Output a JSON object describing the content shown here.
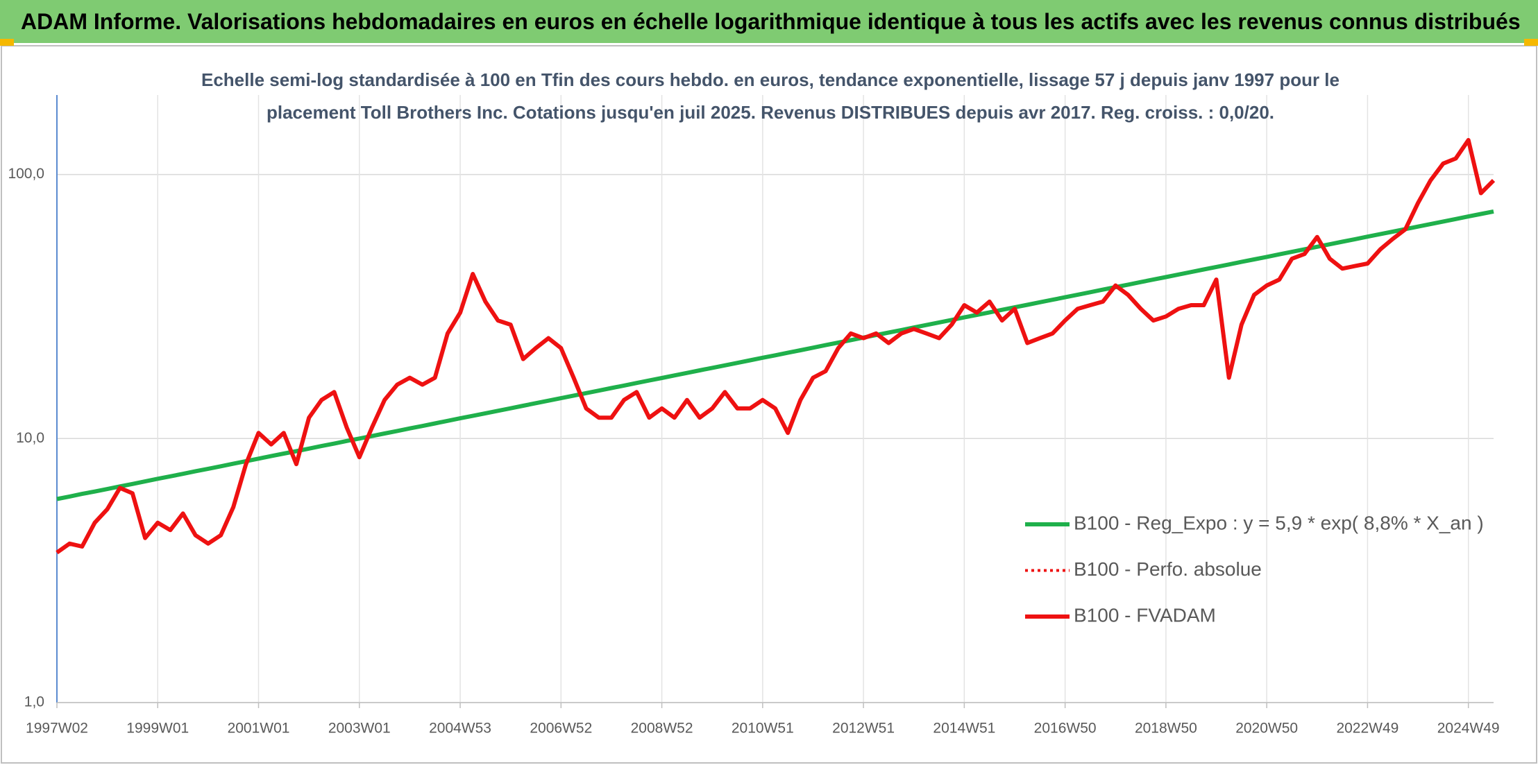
{
  "header": {
    "title": "ADAM Informe. Valorisations hebdomadaires en euros en échelle logarithmique identique à tous les actifs avec les revenus connus distribués"
  },
  "chart_data": {
    "type": "line",
    "title": "Echelle semi-log standardisée à 100 en Tfin des cours hebdo. en euros, tendance exponentielle, lissage 57 j depuis janv 1997 pour le placement Toll Brothers Inc. Cotations jusqu'en juil 2025. Revenus DISTRIBUES depuis avr 2017. Reg. croiss. : 0,0/20.",
    "log_y": true,
    "grid": true,
    "legend_position": "right",
    "ylim": [
      1,
      200
    ],
    "yticks": [
      {
        "value": 1,
        "label": "1,0"
      },
      {
        "value": 10,
        "label": "10,0"
      },
      {
        "value": 100,
        "label": "100,0"
      }
    ],
    "categories": [
      "1997W02",
      null,
      null,
      null,
      null,
      null,
      null,
      null,
      "1999W01",
      null,
      null,
      null,
      null,
      null,
      null,
      null,
      "2001W01",
      null,
      null,
      null,
      null,
      null,
      null,
      null,
      "2003W01",
      null,
      null,
      null,
      null,
      null,
      null,
      null,
      "2004W53",
      null,
      null,
      null,
      null,
      null,
      null,
      null,
      "2006W52",
      null,
      null,
      null,
      null,
      null,
      null,
      null,
      "2008W52",
      null,
      null,
      null,
      null,
      null,
      null,
      null,
      "2010W51",
      null,
      null,
      null,
      null,
      null,
      null,
      null,
      "2012W51",
      null,
      null,
      null,
      null,
      null,
      null,
      null,
      "2014W51",
      null,
      null,
      null,
      null,
      null,
      null,
      null,
      "2016W50",
      null,
      null,
      null,
      null,
      null,
      null,
      null,
      "2018W50",
      null,
      null,
      null,
      null,
      null,
      null,
      null,
      "2020W50",
      null,
      null,
      null,
      null,
      null,
      null,
      null,
      "2022W49",
      null,
      null,
      null,
      null,
      null,
      null,
      null,
      "2024W49",
      null,
      null
    ],
    "series": [
      {
        "name": "B100 - Reg_Expo : y = 5,9 * exp( 8,8% *  X_an )",
        "color": "#1fb04b",
        "style": "solid",
        "values": [
          5.9,
          6.03,
          6.17,
          6.3,
          6.44,
          6.59,
          6.73,
          6.88,
          7.04,
          7.19,
          7.35,
          7.52,
          7.68,
          7.85,
          8.03,
          8.21,
          8.39,
          8.58,
          8.77,
          8.96,
          9.16,
          9.37,
          9.57,
          9.79,
          10.0,
          10.22,
          10.45,
          10.68,
          10.92,
          11.16,
          11.41,
          11.67,
          11.93,
          12.19,
          12.46,
          12.74,
          13.02,
          13.31,
          13.61,
          13.91,
          14.22,
          14.54,
          14.86,
          15.19,
          15.53,
          15.87,
          16.23,
          16.59,
          16.96,
          17.34,
          17.72,
          18.12,
          18.52,
          18.93,
          19.35,
          19.78,
          20.23,
          20.67,
          21.13,
          21.6,
          22.09,
          22.58,
          23.08,
          23.59,
          24.12,
          24.65,
          25.2,
          25.76,
          26.34,
          26.92,
          27.52,
          28.13,
          28.76,
          29.4,
          30.05,
          30.72,
          31.41,
          32.1,
          32.82,
          33.55,
          34.29,
          35.06,
          35.84,
          36.63,
          37.45,
          38.28,
          39.13,
          40.0,
          40.89,
          41.8,
          42.73,
          43.68,
          44.65,
          45.65,
          46.66,
          47.7,
          48.76,
          49.85,
          50.95,
          52.09,
          53.25,
          54.43,
          55.64,
          56.88,
          58.15,
          59.44,
          60.76,
          62.11,
          63.5,
          64.91,
          66.35,
          67.83,
          69.34,
          70.88,
          72.46
        ]
      },
      {
        "name": "B100 - Perfo. absolue",
        "color": "#ee1111",
        "style": "dotted",
        "values": [
          3.7,
          4.0,
          3.9,
          4.8,
          5.4,
          6.5,
          6.2,
          4.2,
          4.8,
          4.5,
          5.2,
          4.3,
          4.0,
          4.3,
          5.5,
          8.0,
          10.5,
          9.5,
          10.5,
          8.0,
          12,
          14,
          15,
          11,
          8.5,
          11,
          14,
          16,
          17,
          16,
          17,
          25,
          30,
          42,
          33,
          28,
          27,
          20,
          22,
          24,
          22,
          17,
          13,
          12,
          12,
          14,
          15,
          12,
          13,
          12,
          14,
          12,
          13,
          15,
          13,
          13,
          14,
          13,
          10.5,
          14,
          17,
          18,
          22,
          25,
          24,
          25,
          23,
          25,
          26,
          25,
          24,
          27,
          32,
          30,
          33,
          28,
          31,
          23,
          24,
          25,
          28,
          31,
          32,
          33,
          38,
          35,
          31,
          28,
          29,
          31,
          32,
          32,
          40,
          17,
          27,
          35,
          38,
          40,
          48,
          50,
          58,
          48,
          44,
          45,
          46,
          52,
          57,
          62,
          78,
          95,
          110,
          115,
          135,
          85,
          95
        ]
      },
      {
        "name": "B100 - FVADAM",
        "color": "#ee1111",
        "style": "solid",
        "values": [
          3.7,
          4.0,
          3.9,
          4.8,
          5.4,
          6.5,
          6.2,
          4.2,
          4.8,
          4.5,
          5.2,
          4.3,
          4.0,
          4.3,
          5.5,
          8.0,
          10.5,
          9.5,
          10.5,
          8.0,
          12,
          14,
          15,
          11,
          8.5,
          11,
          14,
          16,
          17,
          16,
          17,
          25,
          30,
          42,
          33,
          28,
          27,
          20,
          22,
          24,
          22,
          17,
          13,
          12,
          12,
          14,
          15,
          12,
          13,
          12,
          14,
          12,
          13,
          15,
          13,
          13,
          14,
          13,
          10.5,
          14,
          17,
          18,
          22,
          25,
          24,
          25,
          23,
          25,
          26,
          25,
          24,
          27,
          32,
          30,
          33,
          28,
          31,
          23,
          24,
          25,
          28,
          31,
          32,
          33,
          38,
          35,
          31,
          28,
          29,
          31,
          32,
          32,
          40,
          17,
          27,
          35,
          38,
          40,
          48,
          50,
          58,
          48,
          44,
          45,
          46,
          52,
          57,
          62,
          78,
          95,
          110,
          115,
          135,
          85,
          95
        ]
      }
    ]
  }
}
